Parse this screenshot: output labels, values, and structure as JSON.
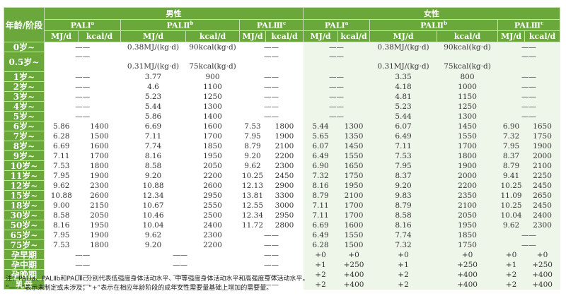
{
  "header": {
    "age_label": "年龄/阶段",
    "male": "男性",
    "female": "女性",
    "pal": [
      {
        "label": "PALⅠ",
        "sup": "a"
      },
      {
        "label": "PALⅡ",
        "sup": "b"
      },
      {
        "label": "PALⅢ",
        "sup": "c"
      }
    ],
    "mj": "MJ/d",
    "kcal": "kcal/d"
  },
  "colors": {
    "header_green": "#6aa83b",
    "female_bg": "#eef5e9"
  },
  "rows": [
    {
      "age": "0岁~",
      "male": [
        "——",
        null,
        "0.38MJ/(kg·d)",
        "90kcal(kg·d)",
        "——",
        null
      ],
      "female": [
        "——",
        null,
        "0.38MJ/(kg·d)",
        "90kcal(kg·d)",
        "——",
        null
      ]
    },
    {
      "age": "0.5岁~",
      "male": [
        "——",
        null,
        "0.31MJ/(kg·d)",
        "75kcal(kg·d)",
        "——",
        null
      ],
      "female": [
        "——",
        null,
        "0.31MJ/(kg·d)",
        "75kcal(kg·d)",
        "——",
        null
      ]
    },
    {
      "age": "1岁~",
      "male": [
        "——",
        null,
        "3.77",
        "900",
        "——",
        null
      ],
      "female": [
        "——",
        null,
        "3.35",
        "800",
        "——",
        null
      ]
    },
    {
      "age": "2岁~",
      "male": [
        "——",
        null,
        "4.6",
        "1100",
        "——",
        null
      ],
      "female": [
        "——",
        null,
        "4.18",
        "1000",
        "——",
        null
      ]
    },
    {
      "age": "3岁~",
      "male": [
        "——",
        null,
        "5.23",
        "1250",
        "——",
        null
      ],
      "female": [
        "——",
        null,
        "4.81",
        "1150",
        "——",
        null
      ]
    },
    {
      "age": "4岁~",
      "male": [
        "——",
        null,
        "5.44",
        "1300",
        "——",
        null
      ],
      "female": [
        "——",
        null,
        "5.23",
        "1250",
        "——",
        null
      ]
    },
    {
      "age": "5岁~",
      "male": [
        "——",
        null,
        "5.86",
        "1400",
        "——",
        null
      ],
      "female": [
        "——",
        null,
        "5.44",
        "1300",
        "——",
        null
      ]
    },
    {
      "age": "6岁~",
      "male": [
        "5.86",
        "1400",
        "6.69",
        "1600",
        "7.53",
        "1800"
      ],
      "female": [
        "5.44",
        "1300",
        "6.07",
        "1450",
        "6.90",
        "1650"
      ]
    },
    {
      "age": "7岁~",
      "male": [
        "6.28",
        "1500",
        "7.11",
        "1700",
        "7.95",
        "1900"
      ],
      "female": [
        "5.65",
        "1350",
        "6.49",
        "1550",
        "7.32",
        "1750"
      ]
    },
    {
      "age": "8岁~",
      "male": [
        "6.69",
        "1600",
        "7.74",
        "1850",
        "8.79",
        "2100"
      ],
      "female": [
        "6.07",
        "1450",
        "7.11",
        "1700",
        "7.95",
        "1900"
      ]
    },
    {
      "age": "9岁~",
      "male": [
        "7.11",
        "1700",
        "8.16",
        "1950",
        "9.20",
        "2200"
      ],
      "female": [
        "6.49",
        "1550",
        "7.53",
        "1800",
        "8.37",
        "2000"
      ]
    },
    {
      "age": "10岁~",
      "male": [
        "7.53",
        "1800",
        "8.58",
        "2050",
        "9.62",
        "2300"
      ],
      "female": [
        "6.90",
        "1650",
        "7.95",
        "1900",
        "8.79",
        "2100"
      ]
    },
    {
      "age": "11岁~",
      "male": [
        "7.95",
        "1900",
        "9.20",
        "2200",
        "10.25",
        "2450"
      ],
      "female": [
        "7.32",
        "1750",
        "8.37",
        "2000",
        "9.41",
        "2250"
      ]
    },
    {
      "age": "12岁~",
      "male": [
        "9.62",
        "2300",
        "10.88",
        "2600",
        "12.13",
        "2900"
      ],
      "female": [
        "8.16",
        "1950",
        "9.20",
        "2200",
        "10.25",
        "2450"
      ]
    },
    {
      "age": "15岁~",
      "male": [
        "10.88",
        "2600",
        "12.34",
        "2950",
        "13.81",
        "3300"
      ],
      "female": [
        "8.79",
        "2100",
        "9.83",
        "2350",
        "11.09",
        "2650"
      ]
    },
    {
      "age": "18岁~",
      "male": [
        "9.00",
        "2150",
        "10.67",
        "2550",
        "12.55",
        "3000"
      ],
      "female": [
        "7.11",
        "1700",
        "8.79",
        "2100",
        "10.25",
        "2450"
      ]
    },
    {
      "age": "30岁~",
      "male": [
        "8.58",
        "2050",
        "10.46",
        "2500",
        "12.34",
        "2950"
      ],
      "female": [
        "7.11",
        "1700",
        "8.58",
        "2050",
        "10.04",
        "2400"
      ]
    },
    {
      "age": "50岁~",
      "male": [
        "8.16",
        "1950",
        "10.04",
        "2400",
        "11.72",
        "2800"
      ],
      "female": [
        "6.69",
        "1600",
        "8.16",
        "1950",
        "9.62",
        "2300"
      ]
    },
    {
      "age": "65岁~",
      "male": [
        "7.95",
        "1900",
        "9.62",
        "2300",
        "——",
        null
      ],
      "female": [
        "6.49",
        "1550",
        "7.74",
        "1850",
        "——",
        null
      ]
    },
    {
      "age": "75岁~",
      "male": [
        "7.53",
        "1800",
        "9.20",
        "2200",
        "——",
        null
      ],
      "female": [
        "6.28",
        "1500",
        "7.32",
        "1750",
        "——",
        null
      ]
    },
    {
      "age": "孕早期",
      "male": [
        "——",
        null,
        "——",
        null,
        "——",
        null
      ],
      "female": [
        "+0",
        "+0",
        "+0",
        "+0",
        "+0",
        "+0"
      ]
    },
    {
      "age": "孕中期",
      "male": [
        "——",
        null,
        "——",
        null,
        "——",
        null
      ],
      "female": [
        "+1",
        "+250",
        "+1",
        "+250",
        "+1",
        "+250"
      ]
    },
    {
      "age": "孕晚期",
      "male": [
        "——",
        null,
        "——",
        null,
        "——",
        null
      ],
      "female": [
        "+2",
        "+400",
        "+2",
        "+400",
        "+2",
        "+400"
      ]
    },
    {
      "age": "乳母",
      "male": [
        "——",
        null,
        "——",
        null,
        "——",
        null
      ],
      "female": [
        "+2",
        "+400",
        "+2",
        "+400",
        "+2",
        "+400"
      ]
    }
  ],
  "notes": [
    "注：PALⅠa、PALⅡb和PALⅢc分别代表低强度身体活动水平、中等强度身体活动水平和高强度身体活动水平。",
    "“——”表示未制定或未涉及；“+”表示在相应年龄阶段的成年女性需要量基础上增加的需要量。"
  ]
}
